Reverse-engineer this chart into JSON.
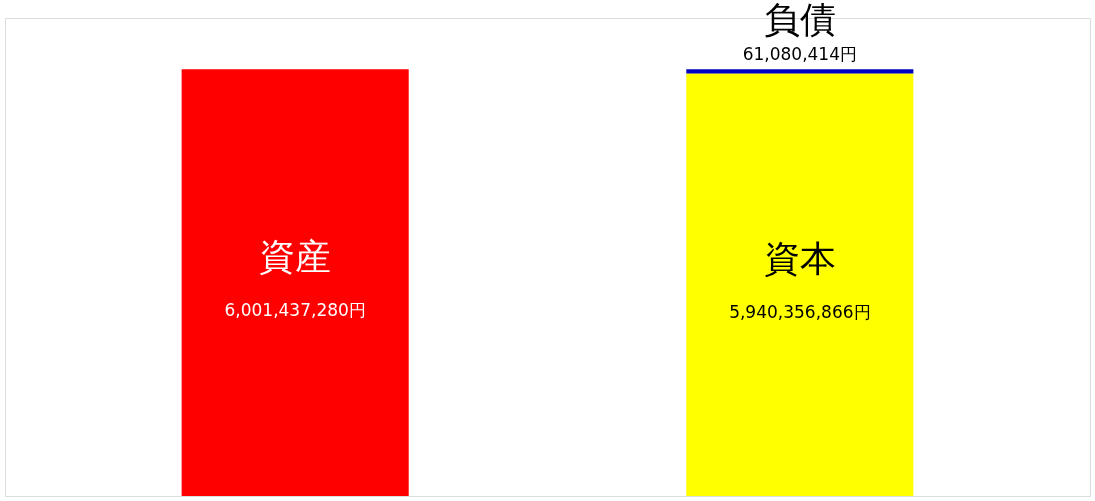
{
  "chart_data": {
    "type": "bar",
    "stacked": true,
    "categories": [
      null,
      null
    ],
    "tick_labels": false,
    "series": [
      {
        "name": "資産",
        "color": "#ff0000",
        "values": [
          6001437280,
          null
        ],
        "value_labels": [
          "6,001,437,280円",
          null
        ]
      },
      {
        "name": "資本",
        "color": "#ffff00",
        "values": [
          null,
          5940356866
        ],
        "value_labels": [
          null,
          "5,940,356,866円"
        ]
      },
      {
        "name": "負債",
        "color": "#0000c0",
        "values": [
          null,
          61080414
        ],
        "value_labels": [
          null,
          "61,080,414円"
        ]
      }
    ]
  }
}
